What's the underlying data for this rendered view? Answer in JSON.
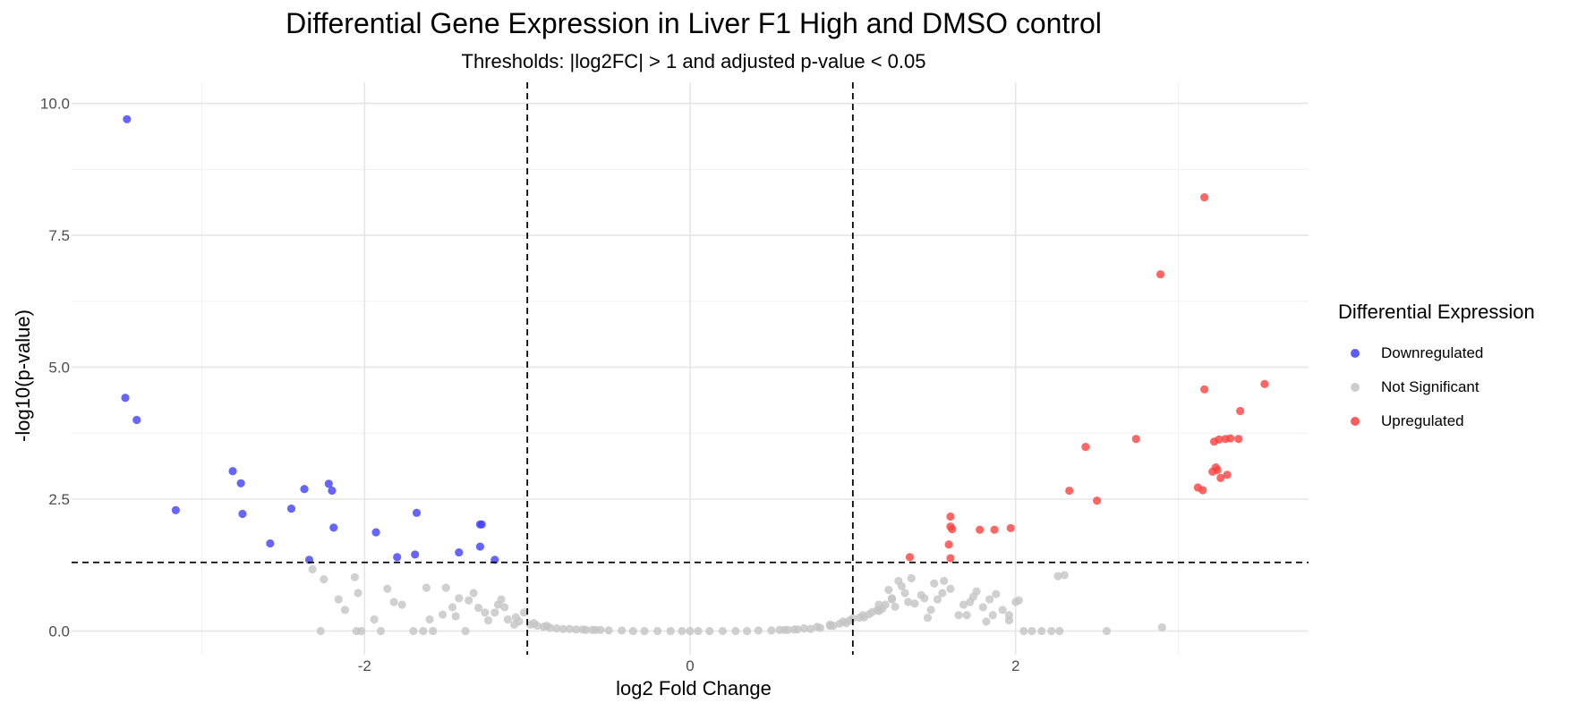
{
  "chart_data": {
    "type": "scatter",
    "title": "Differential Gene Expression in Liver F1 High and DMSO control",
    "subtitle": "Thresholds: |log2FC| > 1 and adjusted p-value < 0.05",
    "xlabel": "log2 Fold Change",
    "ylabel": "-log10(p-value)",
    "xlim": [
      -3.8,
      3.8
    ],
    "ylim": [
      -0.45,
      10.4
    ],
    "x_ticks": [
      -2,
      0,
      2
    ],
    "y_ticks": [
      0.0,
      2.5,
      5.0,
      7.5,
      10.0
    ],
    "x_tick_labels": [
      "-2",
      "0",
      "2"
    ],
    "y_tick_labels": [
      "0.0",
      "2.5",
      "5.0",
      "7.5",
      "10.0"
    ],
    "grid": true,
    "threshold_lines": {
      "vertical": [
        -1,
        1
      ],
      "horizontal": [
        1.3
      ]
    },
    "legend": {
      "title": "Differential Expression",
      "position": "right",
      "entries": [
        {
          "label": "Downregulated",
          "color": "#4040ff"
        },
        {
          "label": "Not Significant",
          "color": "#c4c4c4"
        },
        {
          "label": "Upregulated",
          "color": "#ff4040"
        }
      ]
    },
    "series": [
      {
        "name": "Downregulated",
        "color": "#4040ff",
        "x": [
          -3.46,
          -3.47,
          -3.4,
          -3.16,
          -2.81,
          -2.76,
          -2.75,
          -2.58,
          -2.45,
          -2.37,
          -2.34,
          -2.22,
          -2.2,
          -2.19,
          -1.93,
          -1.8,
          -1.69,
          -1.68,
          -1.42,
          -1.29,
          -1.28,
          -1.29,
          -1.2
        ],
        "y": [
          9.7,
          4.42,
          4.0,
          2.29,
          3.03,
          2.8,
          2.22,
          1.66,
          2.32,
          2.69,
          1.35,
          2.79,
          2.66,
          1.96,
          1.87,
          1.4,
          1.45,
          2.24,
          1.49,
          2.02,
          2.02,
          1.6,
          1.35
        ]
      },
      {
        "name": "Upregulated",
        "color": "#ff4040",
        "x": [
          3.16,
          2.89,
          3.16,
          3.53,
          3.38,
          2.74,
          2.43,
          3.22,
          3.25,
          3.29,
          3.32,
          3.37,
          3.24,
          3.23,
          3.21,
          3.26,
          3.3,
          3.12,
          3.15,
          2.33,
          2.5,
          1.35,
          1.6,
          1.61,
          1.59,
          1.6,
          1.78,
          1.87,
          1.97,
          1.6
        ],
        "y": [
          8.22,
          6.76,
          4.58,
          4.68,
          4.17,
          3.64,
          3.49,
          3.59,
          3.63,
          3.64,
          3.65,
          3.64,
          3.05,
          3.1,
          3.02,
          2.9,
          2.96,
          2.72,
          2.67,
          2.66,
          2.47,
          1.4,
          2.17,
          1.93,
          1.64,
          1.38,
          1.92,
          1.92,
          1.95,
          1.98
        ]
      },
      {
        "name": "Not Significant",
        "color": "#c4c4c4",
        "x": [
          -2.32,
          -2.27,
          -2.16,
          -2.06,
          -2.05,
          -2.02,
          -1.82,
          -1.7,
          -1.6,
          -1.52,
          -1.42,
          -1.3,
          -1.2,
          -1.12,
          -1.05,
          -0.98,
          -0.9,
          -0.82,
          -0.74,
          -0.66,
          -0.6,
          -0.55,
          -0.5,
          -0.42,
          -0.35,
          -0.28,
          -0.2,
          -0.12,
          -0.05,
          0.0,
          0.05,
          0.12,
          0.2,
          0.28,
          0.35,
          0.42,
          0.5,
          0.55,
          0.6,
          0.66,
          0.74,
          0.8,
          0.86,
          0.92,
          0.98,
          1.04,
          1.1,
          1.15,
          1.2,
          1.24,
          1.28,
          1.36,
          1.42,
          1.48,
          1.55,
          1.65,
          1.72,
          1.8,
          1.88,
          1.96,
          2.05,
          2.16,
          2.22,
          2.26,
          2.27,
          2.56,
          2.9,
          -2.04,
          -1.94,
          -1.77,
          -1.64,
          -1.5,
          -1.44,
          -1.36,
          -1.24,
          -1.14,
          -1.08,
          -1.02,
          -0.94,
          -0.86,
          -0.78,
          -0.7,
          -0.64,
          -0.58,
          0.58,
          0.64,
          0.7,
          0.78,
          0.86,
          0.94,
          1.0,
          1.06,
          1.12,
          1.18,
          1.26,
          1.32,
          1.38,
          1.46,
          1.52,
          1.6,
          1.68,
          1.76,
          1.84,
          1.92,
          2.0,
          2.1,
          2.3,
          -2.25,
          -1.9,
          -1.62,
          -1.46,
          -1.33,
          -1.18,
          -1.07,
          -0.96,
          -0.88,
          0.88,
          0.96,
          1.07,
          1.16,
          1.22,
          1.3,
          1.44,
          1.56,
          1.74,
          1.86,
          1.96,
          -2.12,
          -1.86,
          -1.58,
          -1.38,
          -1.26,
          -1.16,
          1.16,
          1.24,
          1.34,
          1.5,
          1.7,
          1.82,
          2.02
        ],
        "y": [
          1.17,
          0.0,
          0.6,
          1.02,
          0.0,
          0.0,
          0.55,
          0.0,
          0.22,
          0.31,
          0.62,
          0.44,
          0.35,
          0.22,
          0.18,
          0.12,
          0.08,
          0.05,
          0.04,
          0.03,
          0.02,
          0.02,
          0.01,
          0.01,
          0.0,
          0.0,
          0.0,
          0.0,
          0.0,
          0.0,
          0.0,
          0.0,
          0.0,
          0.0,
          0.0,
          0.01,
          0.01,
          0.02,
          0.02,
          0.03,
          0.04,
          0.06,
          0.1,
          0.14,
          0.2,
          0.25,
          0.32,
          0.4,
          0.5,
          0.62,
          0.95,
          1.0,
          0.68,
          0.4,
          0.72,
          0.3,
          0.55,
          0.45,
          0.7,
          0.2,
          0.0,
          0.0,
          0.0,
          1.04,
          0.0,
          0.0,
          0.07,
          0.72,
          0.22,
          0.5,
          0.0,
          0.82,
          0.28,
          0.58,
          0.2,
          0.45,
          0.12,
          0.35,
          0.1,
          0.06,
          0.04,
          0.03,
          0.02,
          0.02,
          0.02,
          0.03,
          0.05,
          0.08,
          0.12,
          0.18,
          0.24,
          0.3,
          0.36,
          0.42,
          0.46,
          0.72,
          0.52,
          0.25,
          0.6,
          0.8,
          0.5,
          0.75,
          0.6,
          0.4,
          0.55,
          0.0,
          1.06,
          0.98,
          0.0,
          0.82,
          0.45,
          0.72,
          0.5,
          0.26,
          0.15,
          0.1,
          0.1,
          0.15,
          0.26,
          0.5,
          0.78,
          0.85,
          0.62,
          0.95,
          0.65,
          0.3,
          0.3,
          0.4,
          0.8,
          0.0,
          0.0,
          0.35,
          0.6,
          0.38,
          0.6,
          0.55,
          0.9,
          0.3,
          0.18,
          0.58
        ]
      }
    ]
  }
}
